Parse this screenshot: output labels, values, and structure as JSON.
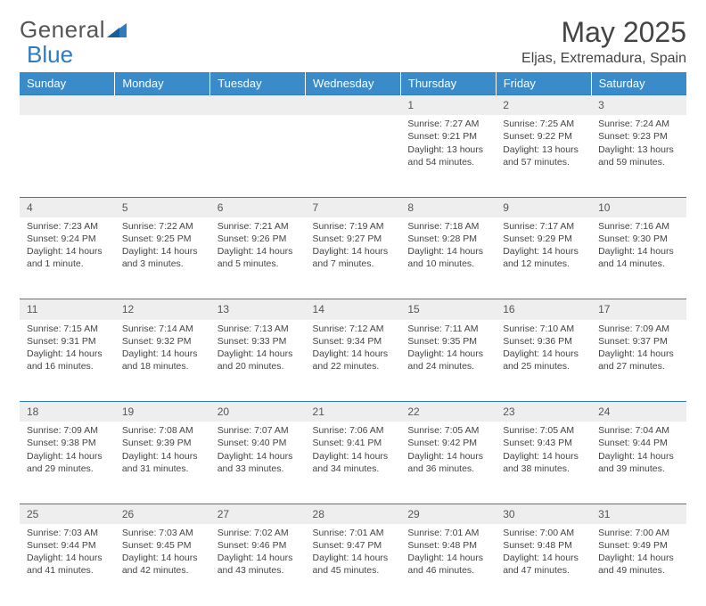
{
  "logo": {
    "word1": "General",
    "word2": "Blue"
  },
  "title": "May 2025",
  "location": "Eljas, Extremadura, Spain",
  "colors": {
    "header_bg": "#3a8bc9",
    "header_text": "#ffffff",
    "daynum_bg": "#eeeeee",
    "row_border": "#2f7bbf",
    "logo_gray": "#555555",
    "logo_blue": "#2f7bbf",
    "text": "#444444"
  },
  "day_headers": [
    "Sunday",
    "Monday",
    "Tuesday",
    "Wednesday",
    "Thursday",
    "Friday",
    "Saturday"
  ],
  "weeks": [
    [
      {
        "n": "",
        "lines": []
      },
      {
        "n": "",
        "lines": []
      },
      {
        "n": "",
        "lines": []
      },
      {
        "n": "",
        "lines": []
      },
      {
        "n": "1",
        "lines": [
          "Sunrise: 7:27 AM",
          "Sunset: 9:21 PM",
          "Daylight: 13 hours",
          "and 54 minutes."
        ]
      },
      {
        "n": "2",
        "lines": [
          "Sunrise: 7:25 AM",
          "Sunset: 9:22 PM",
          "Daylight: 13 hours",
          "and 57 minutes."
        ]
      },
      {
        "n": "3",
        "lines": [
          "Sunrise: 7:24 AM",
          "Sunset: 9:23 PM",
          "Daylight: 13 hours",
          "and 59 minutes."
        ]
      }
    ],
    [
      {
        "n": "4",
        "lines": [
          "Sunrise: 7:23 AM",
          "Sunset: 9:24 PM",
          "Daylight: 14 hours",
          "and 1 minute."
        ]
      },
      {
        "n": "5",
        "lines": [
          "Sunrise: 7:22 AM",
          "Sunset: 9:25 PM",
          "Daylight: 14 hours",
          "and 3 minutes."
        ]
      },
      {
        "n": "6",
        "lines": [
          "Sunrise: 7:21 AM",
          "Sunset: 9:26 PM",
          "Daylight: 14 hours",
          "and 5 minutes."
        ]
      },
      {
        "n": "7",
        "lines": [
          "Sunrise: 7:19 AM",
          "Sunset: 9:27 PM",
          "Daylight: 14 hours",
          "and 7 minutes."
        ]
      },
      {
        "n": "8",
        "lines": [
          "Sunrise: 7:18 AM",
          "Sunset: 9:28 PM",
          "Daylight: 14 hours",
          "and 10 minutes."
        ]
      },
      {
        "n": "9",
        "lines": [
          "Sunrise: 7:17 AM",
          "Sunset: 9:29 PM",
          "Daylight: 14 hours",
          "and 12 minutes."
        ]
      },
      {
        "n": "10",
        "lines": [
          "Sunrise: 7:16 AM",
          "Sunset: 9:30 PM",
          "Daylight: 14 hours",
          "and 14 minutes."
        ]
      }
    ],
    [
      {
        "n": "11",
        "lines": [
          "Sunrise: 7:15 AM",
          "Sunset: 9:31 PM",
          "Daylight: 14 hours",
          "and 16 minutes."
        ]
      },
      {
        "n": "12",
        "lines": [
          "Sunrise: 7:14 AM",
          "Sunset: 9:32 PM",
          "Daylight: 14 hours",
          "and 18 minutes."
        ]
      },
      {
        "n": "13",
        "lines": [
          "Sunrise: 7:13 AM",
          "Sunset: 9:33 PM",
          "Daylight: 14 hours",
          "and 20 minutes."
        ]
      },
      {
        "n": "14",
        "lines": [
          "Sunrise: 7:12 AM",
          "Sunset: 9:34 PM",
          "Daylight: 14 hours",
          "and 22 minutes."
        ]
      },
      {
        "n": "15",
        "lines": [
          "Sunrise: 7:11 AM",
          "Sunset: 9:35 PM",
          "Daylight: 14 hours",
          "and 24 minutes."
        ]
      },
      {
        "n": "16",
        "lines": [
          "Sunrise: 7:10 AM",
          "Sunset: 9:36 PM",
          "Daylight: 14 hours",
          "and 25 minutes."
        ]
      },
      {
        "n": "17",
        "lines": [
          "Sunrise: 7:09 AM",
          "Sunset: 9:37 PM",
          "Daylight: 14 hours",
          "and 27 minutes."
        ]
      }
    ],
    [
      {
        "n": "18",
        "lines": [
          "Sunrise: 7:09 AM",
          "Sunset: 9:38 PM",
          "Daylight: 14 hours",
          "and 29 minutes."
        ]
      },
      {
        "n": "19",
        "lines": [
          "Sunrise: 7:08 AM",
          "Sunset: 9:39 PM",
          "Daylight: 14 hours",
          "and 31 minutes."
        ]
      },
      {
        "n": "20",
        "lines": [
          "Sunrise: 7:07 AM",
          "Sunset: 9:40 PM",
          "Daylight: 14 hours",
          "and 33 minutes."
        ]
      },
      {
        "n": "21",
        "lines": [
          "Sunrise: 7:06 AM",
          "Sunset: 9:41 PM",
          "Daylight: 14 hours",
          "and 34 minutes."
        ]
      },
      {
        "n": "22",
        "lines": [
          "Sunrise: 7:05 AM",
          "Sunset: 9:42 PM",
          "Daylight: 14 hours",
          "and 36 minutes."
        ]
      },
      {
        "n": "23",
        "lines": [
          "Sunrise: 7:05 AM",
          "Sunset: 9:43 PM",
          "Daylight: 14 hours",
          "and 38 minutes."
        ]
      },
      {
        "n": "24",
        "lines": [
          "Sunrise: 7:04 AM",
          "Sunset: 9:44 PM",
          "Daylight: 14 hours",
          "and 39 minutes."
        ]
      }
    ],
    [
      {
        "n": "25",
        "lines": [
          "Sunrise: 7:03 AM",
          "Sunset: 9:44 PM",
          "Daylight: 14 hours",
          "and 41 minutes."
        ]
      },
      {
        "n": "26",
        "lines": [
          "Sunrise: 7:03 AM",
          "Sunset: 9:45 PM",
          "Daylight: 14 hours",
          "and 42 minutes."
        ]
      },
      {
        "n": "27",
        "lines": [
          "Sunrise: 7:02 AM",
          "Sunset: 9:46 PM",
          "Daylight: 14 hours",
          "and 43 minutes."
        ]
      },
      {
        "n": "28",
        "lines": [
          "Sunrise: 7:01 AM",
          "Sunset: 9:47 PM",
          "Daylight: 14 hours",
          "and 45 minutes."
        ]
      },
      {
        "n": "29",
        "lines": [
          "Sunrise: 7:01 AM",
          "Sunset: 9:48 PM",
          "Daylight: 14 hours",
          "and 46 minutes."
        ]
      },
      {
        "n": "30",
        "lines": [
          "Sunrise: 7:00 AM",
          "Sunset: 9:48 PM",
          "Daylight: 14 hours",
          "and 47 minutes."
        ]
      },
      {
        "n": "31",
        "lines": [
          "Sunrise: 7:00 AM",
          "Sunset: 9:49 PM",
          "Daylight: 14 hours",
          "and 49 minutes."
        ]
      }
    ]
  ]
}
